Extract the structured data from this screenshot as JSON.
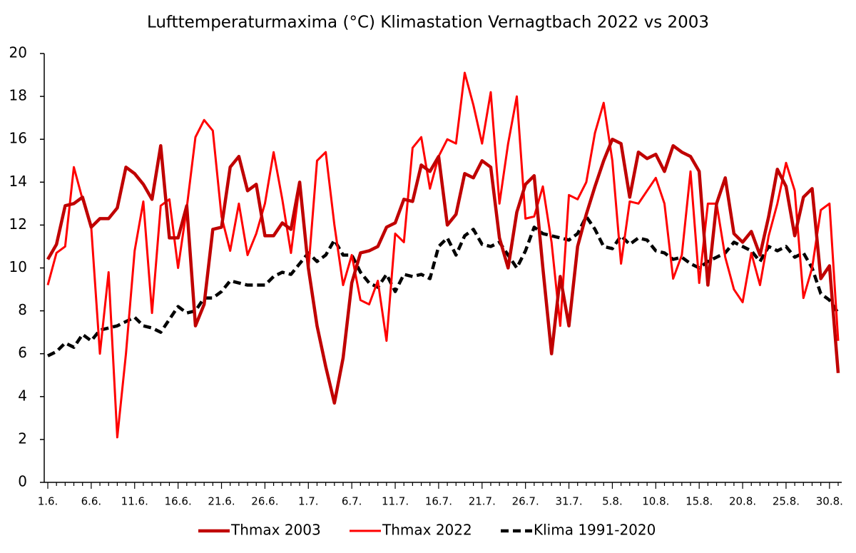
{
  "chart_data": {
    "type": "line",
    "title": "Lufttemperaturmaxima (°C) Klimastation Vernagtbach 2022 vs 2003",
    "categories": [
      "1.6.",
      null,
      null,
      null,
      null,
      "6.6.",
      null,
      null,
      null,
      null,
      "11.6.",
      null,
      null,
      null,
      null,
      "16.6.",
      null,
      null,
      null,
      null,
      "21.6.",
      null,
      null,
      null,
      null,
      "26.6.",
      null,
      null,
      null,
      null,
      "1.7.",
      null,
      null,
      null,
      null,
      "6.7.",
      null,
      null,
      null,
      null,
      "11.7.",
      null,
      null,
      null,
      null,
      "16.7.",
      null,
      null,
      null,
      null,
      "21.7.",
      null,
      null,
      null,
      null,
      "26.7.",
      null,
      null,
      null,
      null,
      "31.7.",
      null,
      null,
      null,
      null,
      "5.8.",
      null,
      null,
      null,
      null,
      "10.8.",
      null,
      null,
      null,
      null,
      "15.8.",
      null,
      null,
      null,
      null,
      "20.8.",
      null,
      null,
      null,
      null,
      "25.8.",
      null,
      null,
      null,
      null,
      "30.8.",
      null
    ],
    "series": [
      {
        "name": "Thmax 2003",
        "color": "#c00000",
        "dashed": false,
        "values": [
          10.4,
          11.1,
          12.9,
          13.0,
          13.3,
          11.9,
          12.3,
          12.3,
          12.8,
          14.7,
          14.4,
          13.9,
          13.2,
          15.7,
          11.4,
          11.4,
          12.9,
          7.3,
          8.3,
          11.8,
          11.9,
          14.7,
          15.2,
          13.6,
          13.9,
          11.5,
          11.5,
          12.1,
          11.8,
          14.0,
          10.0,
          7.3,
          5.4,
          3.7,
          5.8,
          9.3,
          10.7,
          10.8,
          11.0,
          11.9,
          12.1,
          13.2,
          13.1,
          14.8,
          14.5,
          15.2,
          12.0,
          12.5,
          14.4,
          14.2,
          15.0,
          14.7,
          11.4,
          10.0,
          12.6,
          13.9,
          14.3,
          10.0,
          6.0,
          9.6,
          7.3,
          11.0,
          12.5,
          13.8,
          15.0,
          16.0,
          15.8,
          13.3,
          15.4,
          15.1,
          15.3,
          14.5,
          15.7,
          15.4,
          15.2,
          14.5,
          9.2,
          13.0,
          14.2,
          11.6,
          11.2,
          11.7,
          10.6,
          12.4,
          14.6,
          13.8,
          11.5,
          13.3,
          13.7,
          9.5,
          10.1,
          5.1
        ]
      },
      {
        "name": "Thmax 2022",
        "color": "#ff0000",
        "dashed": false,
        "values": [
          9.2,
          10.7,
          11.0,
          14.7,
          13.2,
          11.9,
          6.0,
          9.8,
          2.1,
          6.0,
          10.8,
          13.1,
          7.9,
          12.9,
          13.2,
          10.0,
          12.8,
          16.1,
          16.9,
          16.4,
          12.4,
          10.8,
          13.0,
          10.6,
          11.6,
          13.0,
          15.4,
          13.2,
          10.7,
          13.9,
          9.9,
          15.0,
          15.4,
          12.0,
          9.2,
          10.6,
          8.5,
          8.3,
          9.4,
          6.6,
          11.6,
          11.2,
          15.6,
          16.1,
          13.7,
          15.2,
          16.0,
          15.8,
          19.1,
          17.6,
          15.8,
          18.2,
          13.0,
          15.8,
          18.0,
          12.3,
          12.4,
          13.8,
          11.2,
          7.3,
          13.4,
          13.2,
          14.0,
          16.3,
          17.7,
          15.0,
          10.2,
          13.1,
          13.0,
          13.6,
          14.2,
          13.0,
          9.5,
          10.6,
          14.5,
          9.3,
          13.0,
          13.0,
          10.5,
          9.0,
          8.4,
          10.7,
          9.2,
          11.5,
          13.0,
          14.9,
          13.6,
          8.6,
          10.0,
          12.7,
          13.0,
          6.6
        ]
      },
      {
        "name": "Klima 1991-2020",
        "color": "#000000",
        "dashed": true,
        "values": [
          5.9,
          6.1,
          6.5,
          6.3,
          6.9,
          6.6,
          7.1,
          7.2,
          7.3,
          7.5,
          7.7,
          7.3,
          7.2,
          7.0,
          7.6,
          8.2,
          7.9,
          8.0,
          8.6,
          8.6,
          8.9,
          9.4,
          9.3,
          9.2,
          9.2,
          9.2,
          9.6,
          9.8,
          9.7,
          10.2,
          10.7,
          10.3,
          10.6,
          11.3,
          10.6,
          10.6,
          9.8,
          9.3,
          9.1,
          9.7,
          8.9,
          9.7,
          9.6,
          9.7,
          9.5,
          11.0,
          11.4,
          10.6,
          11.5,
          11.8,
          11.1,
          11.0,
          11.2,
          10.6,
          10.0,
          10.8,
          11.9,
          11.6,
          11.5,
          11.4,
          11.3,
          11.6,
          12.4,
          11.8,
          11.0,
          10.9,
          11.5,
          11.1,
          11.4,
          11.3,
          10.8,
          10.7,
          10.4,
          10.5,
          10.2,
          10.0,
          10.3,
          10.5,
          10.7,
          11.2,
          11.0,
          10.8,
          10.3,
          11.0,
          10.8,
          11.0,
          10.5,
          10.7,
          10.0,
          8.8,
          8.5,
          7.9
        ]
      }
    ],
    "ylim": [
      0,
      20
    ],
    "yticks": [
      0,
      2,
      4,
      6,
      8,
      10,
      12,
      14,
      16,
      18,
      20
    ],
    "grid": false,
    "legend": "bottom"
  }
}
